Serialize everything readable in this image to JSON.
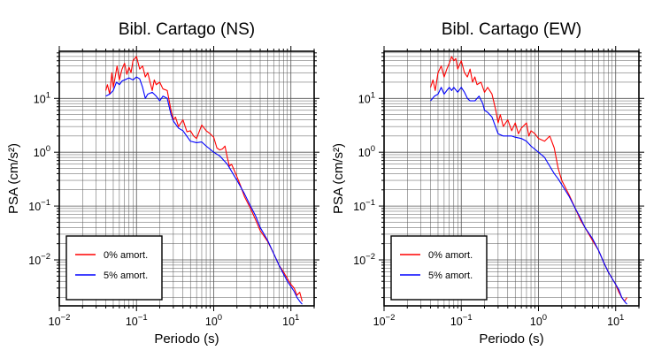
{
  "chart_data": [
    {
      "type": "line",
      "title": "Bibl. Cartago (NS)",
      "xlabel": "Periodo (s)",
      "ylabel": "PSA (cm/s²)",
      "x_scale": "log",
      "y_scale": "log",
      "xlim": [
        0.01,
        20
      ],
      "ylim": [
        0.0014,
        75
      ],
      "x_ticks": [
        {
          "value": 0.01,
          "base": "10",
          "exp": "−2"
        },
        {
          "value": 0.1,
          "base": "10",
          "exp": "−1"
        },
        {
          "value": 1,
          "base": "10",
          "exp": "0"
        },
        {
          "value": 10,
          "base": "10",
          "exp": "1"
        }
      ],
      "y_ticks": [
        {
          "value": 10,
          "base": "10",
          "exp": "1"
        },
        {
          "value": 1,
          "base": "10",
          "exp": "0"
        },
        {
          "value": 0.1,
          "base": "10",
          "exp": "−1"
        },
        {
          "value": 0.01,
          "base": "10",
          "exp": "−2"
        }
      ],
      "grid": true,
      "legend_position": "bottom-left",
      "series": [
        {
          "name": "0% amort.",
          "color": "#ff0000",
          "points": [
            [
              0.04,
              14
            ],
            [
              0.042,
              18
            ],
            [
              0.045,
              12
            ],
            [
              0.048,
              30
            ],
            [
              0.05,
              16
            ],
            [
              0.053,
              25
            ],
            [
              0.056,
              40
            ],
            [
              0.06,
              22
            ],
            [
              0.065,
              35
            ],
            [
              0.07,
              45
            ],
            [
              0.075,
              28
            ],
            [
              0.08,
              38
            ],
            [
              0.085,
              30
            ],
            [
              0.09,
              50
            ],
            [
              0.1,
              60
            ],
            [
              0.11,
              35
            ],
            [
              0.12,
              40
            ],
            [
              0.13,
              25
            ],
            [
              0.14,
              30
            ],
            [
              0.15,
              20
            ],
            [
              0.16,
              14
            ],
            [
              0.17,
              22
            ],
            [
              0.18,
              18
            ],
            [
              0.2,
              20
            ],
            [
              0.22,
              15
            ],
            [
              0.25,
              14
            ],
            [
              0.28,
              6
            ],
            [
              0.3,
              4
            ],
            [
              0.32,
              4.5
            ],
            [
              0.35,
              3
            ],
            [
              0.4,
              4
            ],
            [
              0.45,
              2.4
            ],
            [
              0.5,
              2.5
            ],
            [
              0.55,
              2
            ],
            [
              0.6,
              1.8
            ],
            [
              0.7,
              3.2
            ],
            [
              0.8,
              2.5
            ],
            [
              0.9,
              2.2
            ],
            [
              1.0,
              1.9
            ],
            [
              1.1,
              1.2
            ],
            [
              1.2,
              1.1
            ],
            [
              1.3,
              1.15
            ],
            [
              1.4,
              1.3
            ],
            [
              1.5,
              0.8
            ],
            [
              1.6,
              0.55
            ],
            [
              1.7,
              0.6
            ],
            [
              1.8,
              0.5
            ],
            [
              2.0,
              0.35
            ],
            [
              2.2,
              0.25
            ],
            [
              2.5,
              0.15
            ],
            [
              3.0,
              0.09
            ],
            [
              3.5,
              0.055
            ],
            [
              4.0,
              0.035
            ],
            [
              5.0,
              0.022
            ],
            [
              6.0,
              0.013
            ],
            [
              7.0,
              0.008
            ],
            [
              8.0,
              0.006
            ],
            [
              9.0,
              0.0045
            ],
            [
              10.0,
              0.0035
            ],
            [
              11.0,
              0.003
            ],
            [
              12.0,
              0.0022
            ],
            [
              13.0,
              0.0025
            ],
            [
              14.0,
              0.0017
            ]
          ]
        },
        {
          "name": "5% amort.",
          "color": "#0000ff",
          "points": [
            [
              0.04,
              11
            ],
            [
              0.045,
              12
            ],
            [
              0.05,
              14
            ],
            [
              0.055,
              20
            ],
            [
              0.06,
              18
            ],
            [
              0.065,
              21
            ],
            [
              0.07,
              22
            ],
            [
              0.08,
              24
            ],
            [
              0.09,
              22
            ],
            [
              0.1,
              25
            ],
            [
              0.11,
              23
            ],
            [
              0.12,
              16
            ],
            [
              0.13,
              10
            ],
            [
              0.14,
              12
            ],
            [
              0.16,
              13
            ],
            [
              0.18,
              11
            ],
            [
              0.2,
              9
            ],
            [
              0.22,
              11
            ],
            [
              0.25,
              10
            ],
            [
              0.28,
              5
            ],
            [
              0.3,
              3.8
            ],
            [
              0.35,
              2.8
            ],
            [
              0.4,
              2.5
            ],
            [
              0.5,
              1.6
            ],
            [
              0.6,
              1.5
            ],
            [
              0.7,
              1.55
            ],
            [
              0.8,
              1.3
            ],
            [
              1.0,
              1.0
            ],
            [
              1.2,
              0.85
            ],
            [
              1.5,
              0.6
            ],
            [
              2.0,
              0.3
            ],
            [
              2.5,
              0.17
            ],
            [
              3.0,
              0.1
            ],
            [
              3.5,
              0.065
            ],
            [
              4.0,
              0.04
            ],
            [
              5.0,
              0.023
            ],
            [
              6.0,
              0.013
            ],
            [
              7.0,
              0.008
            ],
            [
              8.0,
              0.0055
            ],
            [
              9.0,
              0.004
            ],
            [
              10.0,
              0.0032
            ],
            [
              11.0,
              0.0026
            ],
            [
              12.0,
              0.002
            ],
            [
              13.0,
              0.0017
            ],
            [
              14.0,
              0.0015
            ]
          ]
        }
      ]
    },
    {
      "type": "line",
      "title": "Bibl. Cartago (EW)",
      "xlabel": "Periodo (s)",
      "ylabel": "PSA (cm/s²)",
      "x_scale": "log",
      "y_scale": "log",
      "xlim": [
        0.01,
        20
      ],
      "ylim": [
        0.0014,
        75
      ],
      "x_ticks": [
        {
          "value": 0.01,
          "base": "10",
          "exp": "−2"
        },
        {
          "value": 0.1,
          "base": "10",
          "exp": "−1"
        },
        {
          "value": 1,
          "base": "10",
          "exp": "0"
        },
        {
          "value": 10,
          "base": "10",
          "exp": "1"
        }
      ],
      "y_ticks": [
        {
          "value": 10,
          "base": "10",
          "exp": "1"
        },
        {
          "value": 1,
          "base": "10",
          "exp": "0"
        },
        {
          "value": 0.1,
          "base": "10",
          "exp": "−1"
        },
        {
          "value": 0.01,
          "base": "10",
          "exp": "−2"
        }
      ],
      "grid": true,
      "legend_position": "bottom-left",
      "series": [
        {
          "name": "0% amort.",
          "color": "#ff0000",
          "points": [
            [
              0.04,
              16
            ],
            [
              0.043,
              22
            ],
            [
              0.046,
              14
            ],
            [
              0.05,
              30
            ],
            [
              0.055,
              40
            ],
            [
              0.06,
              25
            ],
            [
              0.065,
              35
            ],
            [
              0.07,
              45
            ],
            [
              0.075,
              60
            ],
            [
              0.08,
              50
            ],
            [
              0.085,
              55
            ],
            [
              0.09,
              35
            ],
            [
              0.1,
              50
            ],
            [
              0.11,
              30
            ],
            [
              0.12,
              25
            ],
            [
              0.13,
              35
            ],
            [
              0.14,
              20
            ],
            [
              0.15,
              25
            ],
            [
              0.16,
              18
            ],
            [
              0.18,
              20
            ],
            [
              0.2,
              13
            ],
            [
              0.22,
              16
            ],
            [
              0.25,
              12
            ],
            [
              0.28,
              6
            ],
            [
              0.3,
              3.5
            ],
            [
              0.32,
              5
            ],
            [
              0.35,
              3
            ],
            [
              0.4,
              4
            ],
            [
              0.45,
              2.5
            ],
            [
              0.5,
              3.5
            ],
            [
              0.55,
              2.2
            ],
            [
              0.6,
              2.8
            ],
            [
              0.7,
              3.5
            ],
            [
              0.75,
              2.0
            ],
            [
              0.8,
              2.5
            ],
            [
              0.9,
              2.2
            ],
            [
              1.0,
              1.8
            ],
            [
              1.2,
              1.6
            ],
            [
              1.4,
              2.0
            ],
            [
              1.6,
              1.2
            ],
            [
              1.8,
              0.5
            ],
            [
              2.0,
              0.3
            ],
            [
              2.5,
              0.16
            ],
            [
              3.0,
              0.09
            ],
            [
              3.5,
              0.055
            ],
            [
              4.0,
              0.04
            ],
            [
              5.0,
              0.023
            ],
            [
              6.0,
              0.015
            ],
            [
              7.0,
              0.009
            ],
            [
              8.0,
              0.006
            ],
            [
              9.0,
              0.0045
            ],
            [
              10.0,
              0.0035
            ],
            [
              11.0,
              0.0025
            ],
            [
              12.0,
              0.002
            ],
            [
              13.0,
              0.0017
            ],
            [
              14.0,
              0.002
            ]
          ]
        },
        {
          "name": "5% amort.",
          "color": "#0000ff",
          "points": [
            [
              0.04,
              9
            ],
            [
              0.045,
              11
            ],
            [
              0.05,
              12
            ],
            [
              0.055,
              16
            ],
            [
              0.06,
              12
            ],
            [
              0.065,
              14
            ],
            [
              0.07,
              16
            ],
            [
              0.075,
              14
            ],
            [
              0.08,
              16
            ],
            [
              0.09,
              13
            ],
            [
              0.1,
              16
            ],
            [
              0.11,
              13
            ],
            [
              0.12,
              10
            ],
            [
              0.13,
              9
            ],
            [
              0.15,
              9
            ],
            [
              0.17,
              11
            ],
            [
              0.19,
              8
            ],
            [
              0.2,
              6
            ],
            [
              0.22,
              5.5
            ],
            [
              0.25,
              4.5
            ],
            [
              0.3,
              2.2
            ],
            [
              0.35,
              2.0
            ],
            [
              0.45,
              2.0
            ],
            [
              0.5,
              1.9
            ],
            [
              0.6,
              1.8
            ],
            [
              0.7,
              1.6
            ],
            [
              0.8,
              1.3
            ],
            [
              1.0,
              1.0
            ],
            [
              1.2,
              0.8
            ],
            [
              1.4,
              0.55
            ],
            [
              1.6,
              0.4
            ],
            [
              1.8,
              0.32
            ],
            [
              2.0,
              0.25
            ],
            [
              2.5,
              0.15
            ],
            [
              3.0,
              0.09
            ],
            [
              3.5,
              0.06
            ],
            [
              4.0,
              0.04
            ],
            [
              5.0,
              0.025
            ],
            [
              6.0,
              0.015
            ],
            [
              7.0,
              0.009
            ],
            [
              8.0,
              0.006
            ],
            [
              9.0,
              0.0045
            ],
            [
              10.0,
              0.0035
            ],
            [
              11.0,
              0.0028
            ],
            [
              12.0,
              0.002
            ],
            [
              13.0,
              0.0017
            ],
            [
              14.0,
              0.0015
            ]
          ]
        }
      ]
    }
  ]
}
